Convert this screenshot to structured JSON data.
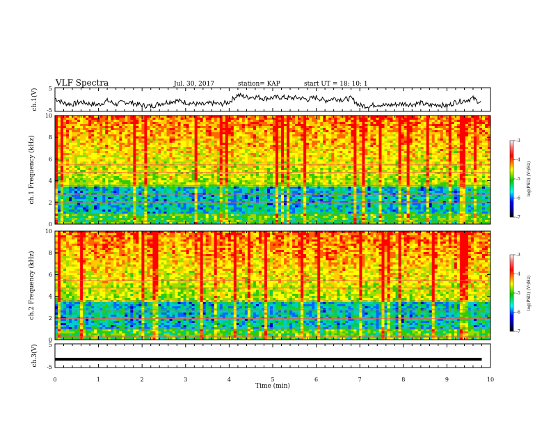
{
  "header": {
    "title": "VLF Spectra",
    "date": "Jul. 30, 2017",
    "station": "station= KAP",
    "start": "start  UT =   18: 10: 1"
  },
  "chart_data": [
    {
      "type": "line",
      "ylabel": "ch.1(V)",
      "ylim": [
        -5,
        5
      ],
      "yticks": [
        "5",
        "-5"
      ],
      "xlim": [
        0,
        10
      ],
      "description_series": "waveform voltage, fluctuating mostly between -3 and 2",
      "series": [
        {
          "x": [
            0,
            0.2,
            0.4,
            0.6,
            0.8,
            1.0,
            1.2,
            1.4,
            1.6,
            1.8,
            2.0,
            2.2,
            2.4,
            2.6,
            2.8,
            3.0,
            3.2,
            3.4,
            3.6,
            3.8,
            4.0,
            4.2,
            4.4,
            4.6,
            4.8,
            5.0,
            5.2,
            5.4,
            5.6,
            5.8,
            6.0,
            6.2,
            6.4,
            6.6,
            6.8,
            7.0,
            7.2,
            7.4,
            7.6,
            7.8,
            8.0,
            8.2,
            8.4,
            8.6,
            8.8,
            9.0,
            9.2,
            9.4,
            9.6,
            9.8
          ],
          "y": [
            0.5,
            -1.5,
            -2,
            -1,
            -1.8,
            -2.2,
            -0.5,
            -2,
            -1,
            -1.5,
            -2.5,
            -2.8,
            -1.8,
            -1,
            -0.5,
            -1.2,
            -1.8,
            -2.2,
            -1.5,
            -2,
            -1,
            2,
            1,
            1.2,
            0.5,
            0.8,
            1,
            0.6,
            0.8,
            0,
            1,
            -0.5,
            0.5,
            0,
            0.5,
            -2.5,
            -2.8,
            -2,
            -2.5,
            -2.2,
            -1.8,
            -2,
            -1.5,
            -2.5,
            -2,
            -2.8,
            -1,
            -0.5,
            0.5,
            -1.5
          ]
        }
      ]
    },
    {
      "type": "heatmap",
      "ylabel": "ch.1 Frequency (kHz)",
      "ylim": [
        0,
        10
      ],
      "yticks": [
        "0",
        "2",
        "4",
        "6",
        "8",
        "10"
      ],
      "xlim": [
        0,
        10
      ],
      "colorbar": {
        "label": "log(PSD) (V²/Hz)",
        "range": [
          -7,
          -3
        ],
        "ticks": [
          "-3",
          "-4",
          "-5",
          "-6",
          "-7"
        ]
      }
    },
    {
      "type": "heatmap",
      "ylabel": "ch.2 Frequency (kHz)",
      "ylim": [
        0,
        10
      ],
      "yticks": [
        "0",
        "2",
        "4",
        "6",
        "8",
        "10"
      ],
      "xlim": [
        0,
        10
      ],
      "colorbar": {
        "label": "log(PSD) (V²/Hz)",
        "range": [
          -7,
          -3
        ],
        "ticks": [
          "-3",
          "-4",
          "-5",
          "-6",
          "-7"
        ]
      }
    },
    {
      "type": "line",
      "ylabel": "ch.3(V)",
      "ylim": [
        -5,
        5
      ],
      "yticks": [
        "5",
        "-5"
      ],
      "xlim": [
        0,
        10
      ],
      "series": [
        {
          "x": [
            0,
            9.8
          ],
          "y": [
            -1.5,
            -1.5
          ]
        }
      ]
    }
  ],
  "xaxis": {
    "label": "Time (min)",
    "ticks": [
      "0",
      "1",
      "2",
      "3",
      "4",
      "5",
      "6",
      "7",
      "8",
      "9",
      "10"
    ]
  },
  "colors": {
    "low": "#000080",
    "mid": "#00cc00",
    "high": "#cc0000"
  }
}
